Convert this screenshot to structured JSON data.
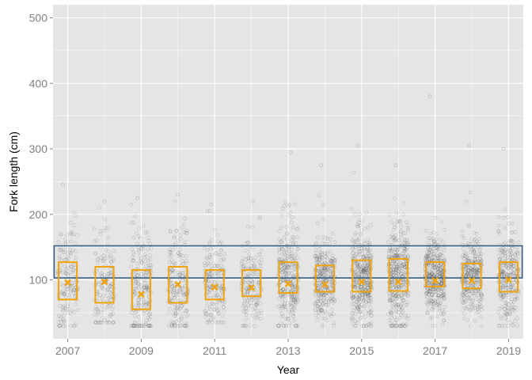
{
  "chart_data": {
    "type": "scatter",
    "xlabel": "Year",
    "ylabel": "Fork length (cm)",
    "xlim": [
      2006.6,
      2019.4
    ],
    "ylim": [
      10,
      520
    ],
    "x_ticks": [
      2007,
      2009,
      2011,
      2013,
      2015,
      2017,
      2019
    ],
    "y_ticks": [
      100,
      200,
      300,
      400,
      500
    ],
    "grid": true,
    "reference_band": {
      "low": 103,
      "high": 152
    },
    "colors": {
      "panel": "#e5e5e5",
      "grid": "#ffffff",
      "points": "#333333",
      "box": "#f0a30a",
      "band": "#3a5f87"
    },
    "groups": [
      {
        "year": 2007,
        "q1": 70,
        "q3": 127,
        "mean": 96,
        "min": 30,
        "max": 245,
        "n": 160
      },
      {
        "year": 2008,
        "q1": 65,
        "q3": 120,
        "mean": 97,
        "min": 35,
        "max": 220,
        "n": 150
      },
      {
        "year": 2009,
        "q1": 55,
        "q3": 115,
        "mean": 78,
        "min": 30,
        "max": 225,
        "n": 220
      },
      {
        "year": 2010,
        "q1": 65,
        "q3": 120,
        "mean": 93,
        "min": 30,
        "max": 230,
        "n": 200
      },
      {
        "year": 2011,
        "q1": 70,
        "q3": 115,
        "mean": 89,
        "min": 35,
        "max": 215,
        "n": 190
      },
      {
        "year": 2012,
        "q1": 75,
        "q3": 115,
        "mean": 88,
        "min": 30,
        "max": 220,
        "n": 180
      },
      {
        "year": 2013,
        "q1": 80,
        "q3": 127,
        "mean": 94,
        "min": 30,
        "max": 295,
        "n": 320
      },
      {
        "year": 2014,
        "q1": 82,
        "q3": 122,
        "mean": 93,
        "min": 30,
        "max": 275,
        "n": 330
      },
      {
        "year": 2015,
        "q1": 82,
        "q3": 130,
        "mean": 97,
        "min": 30,
        "max": 305,
        "n": 420
      },
      {
        "year": 2016,
        "q1": 83,
        "q3": 132,
        "mean": 97,
        "min": 30,
        "max": 275,
        "n": 400
      },
      {
        "year": 2017,
        "q1": 90,
        "q3": 127,
        "mean": 99,
        "min": 30,
        "max": 380,
        "n": 420
      },
      {
        "year": 2018,
        "q1": 87,
        "q3": 125,
        "mean": 99,
        "min": 30,
        "max": 305,
        "n": 340
      },
      {
        "year": 2019,
        "q1": 82,
        "q3": 127,
        "mean": 100,
        "min": 30,
        "max": 300,
        "n": 300
      }
    ]
  }
}
